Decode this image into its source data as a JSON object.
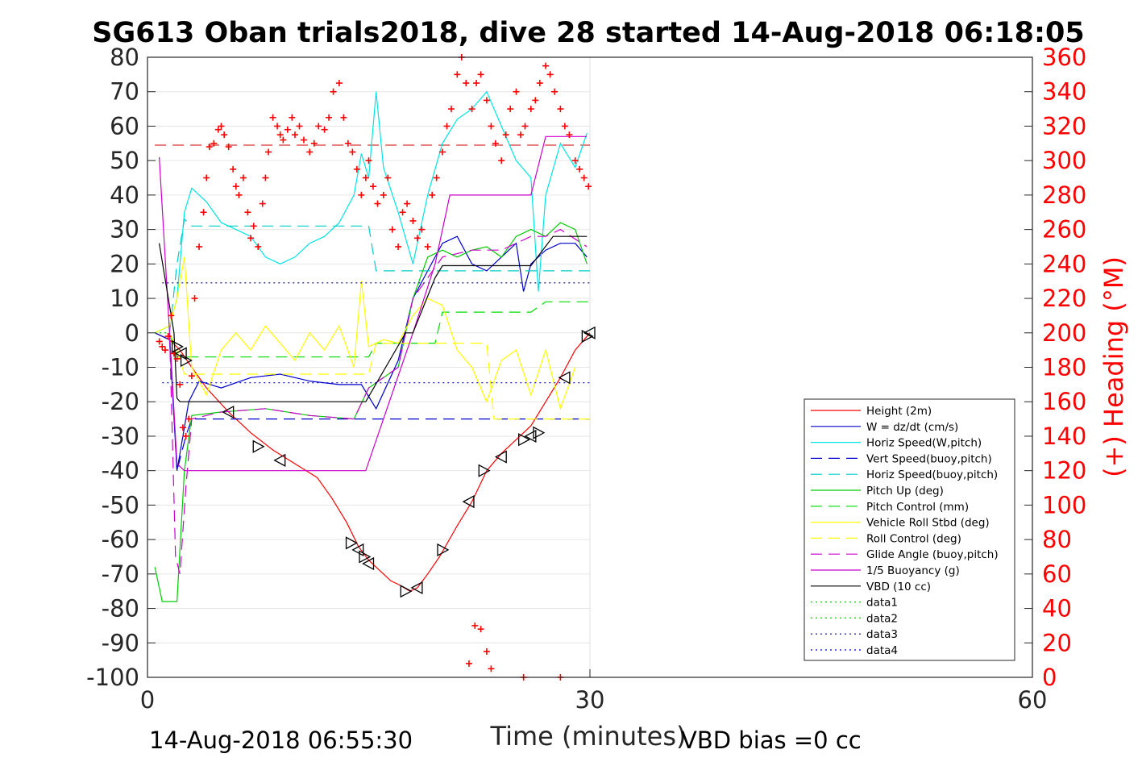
{
  "chart_data": {
    "type": "line",
    "title": "SG613 Oban trials2018, dive 28 started 14-Aug-2018 06:18:05",
    "xlabel": "Time (minutes)",
    "ylabel": "",
    "y2label": "(+) Heading (°M)",
    "xlim": [
      0,
      60
    ],
    "ylim": [
      -100,
      80
    ],
    "y2lim": [
      0,
      360
    ],
    "x_ticks": [
      "0",
      "30",
      "60"
    ],
    "y_ticks": [
      "-100",
      "-90",
      "-80",
      "-70",
      "-60",
      "-50",
      "-40",
      "-30",
      "-20",
      "-10",
      "0",
      "10",
      "20",
      "30",
      "40",
      "50",
      "60",
      "70",
      "80"
    ],
    "y2_ticks": [
      "0",
      "20",
      "40",
      "60",
      "80",
      "100",
      "120",
      "140",
      "160",
      "180",
      "200",
      "220",
      "240",
      "260",
      "280",
      "300",
      "320",
      "340",
      "360"
    ],
    "grid": "partial",
    "legend_position": "bottom-right",
    "footer_left": "14-Aug-2018 06:55:30",
    "footer_right": "VBD bias =0 cc",
    "series": [
      {
        "name": "Height (2m)",
        "color": "#ff0000",
        "dash": "solid",
        "x": [
          0.5,
          1.5,
          2.2,
          3.0,
          4.0,
          5.5,
          7.0,
          8.5,
          10.0,
          11.5,
          12.5,
          13.5,
          14.3,
          15.0,
          15.5,
          16.0,
          16.5,
          17.0,
          17.8,
          18.3,
          19.0,
          19.8,
          20.2,
          21.0,
          22.0,
          23.0,
          24.0,
          25.0,
          26.0,
          27.0,
          28.0,
          29.0,
          30.0
        ],
        "y": [
          0,
          -2,
          -5,
          -10,
          -16,
          -23,
          -29,
          -34,
          -38,
          -42,
          -48,
          -55,
          -62,
          -66,
          -68,
          -70,
          -72,
          -73,
          -75,
          -74,
          -70,
          -65,
          -62,
          -56,
          -49,
          -40,
          -35,
          -31,
          -27,
          -20,
          -13,
          -5,
          0
        ]
      },
      {
        "name": "W = dz/dt (cm/s)",
        "color": "#0000cc",
        "dash": "solid",
        "x": [
          0.5,
          1.5,
          2.0,
          2.2,
          2.8,
          3.5,
          5,
          7,
          9,
          11,
          13,
          14.5,
          15.5,
          17,
          18,
          19,
          20,
          21,
          22,
          23,
          24,
          25,
          25.5,
          26,
          27,
          28,
          29,
          29.8
        ],
        "y": [
          0,
          -2,
          -40,
          -35,
          -20,
          -14,
          -16,
          -13,
          -12,
          -14,
          -15,
          -15,
          -22,
          -8,
          10,
          18,
          26,
          28,
          20,
          18,
          22,
          26,
          12,
          20,
          24,
          26,
          26,
          22
        ]
      },
      {
        "name": "Horiz Speed(W,pitch)",
        "color": "#00e5e5",
        "dash": "solid",
        "x": [
          0.5,
          1.5,
          2.0,
          2.5,
          3.0,
          4,
          5,
          6,
          7,
          8,
          9,
          10,
          11,
          12,
          13,
          14,
          14.5,
          15,
          15.5,
          16,
          17,
          18,
          19,
          20,
          21,
          22,
          23,
          24,
          25,
          26,
          26.5,
          27,
          28,
          29,
          29.8
        ],
        "y": [
          0,
          2,
          10,
          35,
          42,
          38,
          32,
          30,
          28,
          22,
          20,
          22,
          26,
          28,
          32,
          40,
          52,
          45,
          70,
          48,
          35,
          20,
          40,
          55,
          62,
          65,
          70,
          60,
          50,
          45,
          12,
          40,
          55,
          48,
          58
        ]
      },
      {
        "name": "Vert Speed(buoy,pitch)",
        "color": "#0000cc",
        "dash": "long",
        "x": [
          1.5,
          2.0,
          2.6,
          3.0,
          30
        ],
        "y": [
          0,
          -40,
          -30,
          -25,
          -25
        ]
      },
      {
        "name": "Horiz Speed(buoy,pitch)",
        "color": "#00cccc",
        "dash": "long",
        "x": [
          1.5,
          2.0,
          2.5,
          3.0,
          15.0,
          15.5,
          30
        ],
        "y": [
          0,
          20,
          33,
          31,
          31,
          18,
          18
        ]
      },
      {
        "name": "Pitch Up (deg)",
        "color": "#00cc00",
        "dash": "solid",
        "x": [
          0.5,
          1.0,
          2.0,
          2.5,
          3.0,
          5,
          8,
          11,
          14,
          15,
          17,
          18,
          19,
          20,
          21,
          22,
          23,
          24,
          25,
          26,
          27,
          28,
          29,
          29.8
        ],
        "y": [
          -68,
          -78,
          -78,
          -40,
          -24,
          -23,
          -22,
          -24,
          -25,
          -16,
          -10,
          10,
          22,
          24,
          22,
          24,
          25,
          22,
          28,
          30,
          28,
          32,
          30,
          20
        ]
      },
      {
        "name": "Pitch Control (mm)",
        "color": "#00dd00",
        "dash": "long",
        "x": [
          1.5,
          2.0,
          2.5,
          15.0,
          15.5,
          19.5,
          20.0,
          26.0,
          27.0,
          30.0
        ],
        "y": [
          0,
          -7,
          -7,
          -7,
          -3,
          -3,
          6,
          6,
          9,
          9
        ]
      },
      {
        "name": "Vehicle Roll Stbd (deg)",
        "color": "#ffff00",
        "dash": "solid",
        "x": [
          0.5,
          1.5,
          2.0,
          2.5,
          3,
          4,
          5,
          6,
          7,
          8,
          9,
          10,
          11,
          12,
          13,
          14,
          14.5,
          15,
          16,
          17,
          18,
          19,
          20,
          21,
          22,
          23,
          24,
          25,
          26,
          27,
          28,
          29
        ],
        "y": [
          0,
          2,
          10,
          22,
          -10,
          -18,
          -5,
          0,
          -5,
          2,
          -3,
          -8,
          0,
          -5,
          2,
          -10,
          15,
          -4,
          -2,
          -3,
          5,
          10,
          8,
          -5,
          -10,
          -20,
          -8,
          -5,
          -18,
          -5,
          -22,
          -10
        ]
      },
      {
        "name": "Roll Control (deg)",
        "color": "#ffff00",
        "dash": "long",
        "x": [
          1.5,
          2.0,
          2.5,
          15.0,
          15.5,
          23.0,
          23.5,
          30.0
        ],
        "y": [
          0,
          -5,
          -12,
          -12,
          -3,
          -3,
          -25,
          -25
        ]
      },
      {
        "name": "Glide Angle (buoy,pitch)",
        "color": "#cc00cc",
        "dash": "long",
        "x": [
          1.5,
          1.9,
          2.2,
          2.6,
          3.0,
          5,
          8,
          11,
          14,
          15,
          17,
          18,
          20,
          22,
          24,
          26,
          27,
          28,
          29.8
        ],
        "y": [
          0,
          -65,
          -70,
          -45,
          -25,
          -23,
          -22,
          -24,
          -25,
          -16,
          -10,
          10,
          22,
          24,
          24,
          28,
          28,
          30,
          25
        ]
      },
      {
        "name": "1/5 Buoyancy (g)",
        "color": "#cc00cc",
        "dash": "solid",
        "x": [
          0.8,
          1.5,
          2.0,
          2.5,
          3.0,
          14.8,
          18.0,
          19.5,
          20.5,
          24.5,
          26.0,
          27.0,
          27.5,
          29.8
        ],
        "y": [
          51,
          0,
          -38,
          -40,
          -40,
          -40,
          0,
          20,
          40,
          40,
          40,
          57,
          57,
          57
        ]
      },
      {
        "name": "VBD (10 cc)",
        "color": "#000000",
        "dash": "solid",
        "x": [
          0.8,
          1.8,
          2.0,
          2.2,
          14.8,
          17.5,
          18.0,
          19.5,
          20.0,
          26.0,
          27.5,
          29.8
        ],
        "y": [
          26,
          0,
          -19,
          -20,
          -20,
          0,
          0,
          16,
          19.5,
          19.5,
          28,
          28
        ]
      },
      {
        "name": "data1",
        "color": "#00cc00",
        "dash": "dot",
        "x": [
          0.5,
          1.5
        ],
        "y": [
          0,
          0
        ]
      },
      {
        "name": "data2",
        "color": "#00cc00",
        "dash": "dot",
        "x": [
          0.5,
          1.5
        ],
        "y": [
          0,
          0
        ]
      },
      {
        "name": "data3",
        "color": "#000080",
        "dash": "dot",
        "x": [
          1.0,
          30.0
        ],
        "y": [
          14.5,
          14.5
        ]
      },
      {
        "name": "data4",
        "color": "#0000cc",
        "dash": "dot",
        "x": [
          1.0,
          30.0
        ],
        "y": [
          -14.5,
          -14.5
        ]
      }
    ],
    "reference_lines": [
      {
        "color": "#cc0000",
        "dash": "long",
        "y": 54.5,
        "x": [
          0.5,
          30
        ]
      }
    ],
    "heading_points": {
      "axis": "right",
      "color": "#ff0000",
      "marker": "+",
      "x": [
        0.8,
        1.0,
        1.2,
        1.4,
        1.6,
        1.8,
        2.0,
        2.2,
        2.4,
        2.6,
        2.8,
        3.0,
        3.2,
        3.5,
        3.8,
        4.0,
        4.2,
        4.5,
        4.8,
        5.0,
        5.2,
        5.5,
        5.8,
        6.0,
        6.2,
        6.5,
        6.8,
        7.0,
        7.2,
        7.5,
        7.8,
        8.0,
        8.2,
        8.5,
        8.8,
        9.0,
        9.2,
        9.5,
        9.8,
        10.0,
        10.3,
        10.6,
        11.0,
        11.3,
        11.6,
        12.0,
        12.3,
        12.6,
        13.0,
        13.3,
        13.6,
        13.9,
        14.2,
        14.5,
        14.8,
        15.0,
        15.3,
        15.6,
        16.0,
        16.3,
        16.6,
        17.0,
        17.3,
        17.6,
        18.0,
        18.3,
        18.6,
        19.0,
        19.3,
        19.6,
        20.0,
        20.3,
        20.6,
        21.0,
        21.3,
        21.6,
        22.0,
        22.3,
        22.6,
        23.0,
        23.3,
        23.6,
        24.0,
        24.3,
        24.6,
        25.0,
        25.3,
        25.6,
        26.0,
        26.3,
        26.6,
        27.0,
        27.3,
        27.6,
        28.0,
        28.3,
        28.6,
        29.0,
        29.3,
        29.6,
        29.9,
        21.8,
        22.2,
        22.6,
        23.0,
        23.3,
        25.5,
        28.0
      ],
      "y": [
        195,
        192,
        190,
        198,
        210,
        188,
        185,
        170,
        145,
        140,
        150,
        175,
        220,
        250,
        270,
        290,
        308,
        310,
        318,
        320,
        315,
        308,
        295,
        285,
        280,
        290,
        270,
        255,
        262,
        250,
        275,
        290,
        305,
        325,
        320,
        315,
        312,
        318,
        325,
        315,
        320,
        312,
        305,
        310,
        320,
        318,
        325,
        340,
        345,
        325,
        310,
        305,
        295,
        280,
        290,
        300,
        285,
        275,
        280,
        290,
        260,
        250,
        270,
        275,
        265,
        255,
        260,
        250,
        280,
        290,
        305,
        320,
        330,
        350,
        360,
        345,
        330,
        345,
        350,
        335,
        320,
        310,
        300,
        315,
        330,
        340,
        315,
        320,
        330,
        335,
        345,
        355,
        350,
        340,
        330,
        320,
        315,
        300,
        295,
        290,
        285,
        8,
        30,
        28,
        15,
        5,
        0,
        0
      ]
    },
    "profile_markers": {
      "description": "triangles along Height curve",
      "x": [
        2.0,
        2.3,
        2.6,
        5.5,
        7.5,
        9.0,
        13.8,
        14.3,
        14.7,
        15.0,
        17.5,
        18.3,
        20.0,
        21.8,
        22.8,
        24.0,
        25.5,
        26.0,
        26.5,
        28.3,
        29.8,
        30.0
      ],
      "y": [
        -4,
        -6,
        -8,
        -23,
        -33,
        -37,
        -61,
        -63,
        -65,
        -67,
        -75,
        -74,
        -63,
        -49,
        -40,
        -36,
        -31,
        -30,
        -29,
        -13,
        -1,
        0
      ]
    }
  }
}
